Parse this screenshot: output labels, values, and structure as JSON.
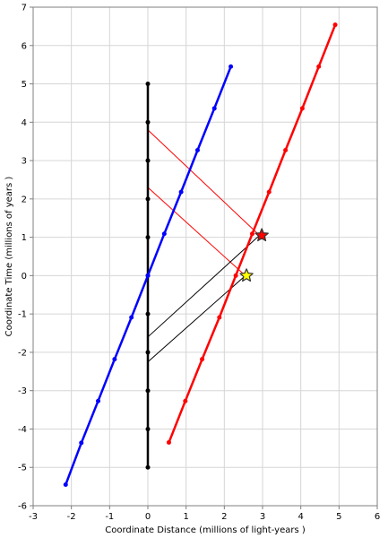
{
  "chart_data": {
    "type": "line",
    "title": "",
    "xlabel": "Coordinate Distance (millions of light-years )",
    "ylabel": "Coordinate Time (millions of years )",
    "xlim": [
      -3,
      6
    ],
    "ylim": [
      -6,
      7
    ],
    "grid": true,
    "xticks": [
      "-3",
      "-2",
      "-1",
      "0",
      "1",
      "2",
      "3",
      "4",
      "5",
      "6"
    ],
    "yticks": [
      "-6",
      "-5",
      "-4",
      "-3",
      "-2",
      "-1",
      "0",
      "1",
      "2",
      "3",
      "4",
      "5",
      "6",
      "7"
    ],
    "series": [
      {
        "color": "#000000",
        "points": [
          [
            0,
            -5
          ],
          [
            0,
            -4
          ],
          [
            0,
            -3
          ],
          [
            0,
            -2
          ],
          [
            0,
            -1
          ],
          [
            0,
            0
          ],
          [
            0,
            1
          ],
          [
            0,
            2
          ],
          [
            0,
            3
          ],
          [
            0,
            4
          ],
          [
            0,
            5
          ]
        ]
      },
      {
        "color": "#0000ff",
        "points": [
          [
            -2.15,
            -5.45
          ],
          [
            -1.74,
            -4.36
          ],
          [
            -1.3,
            -3.27
          ],
          [
            -0.87,
            -2.18
          ],
          [
            -0.43,
            -1.09
          ],
          [
            0,
            0
          ],
          [
            0.43,
            1.09
          ],
          [
            0.87,
            2.18
          ],
          [
            1.3,
            3.27
          ],
          [
            1.74,
            4.36
          ],
          [
            2.17,
            5.45
          ]
        ]
      },
      {
        "color": "#ff0000",
        "points": [
          [
            0.55,
            -4.35
          ],
          [
            0.98,
            -3.27
          ],
          [
            1.42,
            -2.18
          ],
          [
            1.87,
            -1.09
          ],
          [
            2.3,
            0
          ],
          [
            2.73,
            1.09
          ],
          [
            3.17,
            2.18
          ],
          [
            3.6,
            3.27
          ],
          [
            4.04,
            4.36
          ],
          [
            4.47,
            5.45
          ],
          [
            4.9,
            6.54
          ]
        ]
      }
    ],
    "light_signals": [
      {
        "color": "#ff0000",
        "from": [
          0,
          3.8
        ],
        "to": [
          2.92,
          1.05
        ]
      },
      {
        "color": "#ff0000",
        "from": [
          0,
          2.3
        ],
        "to": [
          2.55,
          0.0
        ]
      },
      {
        "color": "#000000",
        "from": [
          0,
          -1.6
        ],
        "to": [
          2.92,
          1.05
        ]
      },
      {
        "color": "#000000",
        "from": [
          0,
          -2.25
        ],
        "to": [
          2.55,
          0.0
        ]
      }
    ],
    "events": [
      {
        "shape": "star",
        "fill": "#ff0000",
        "at": [
          2.98,
          1.05
        ]
      },
      {
        "shape": "star",
        "fill": "#ffff00",
        "at": [
          2.58,
          0.0
        ]
      }
    ]
  }
}
